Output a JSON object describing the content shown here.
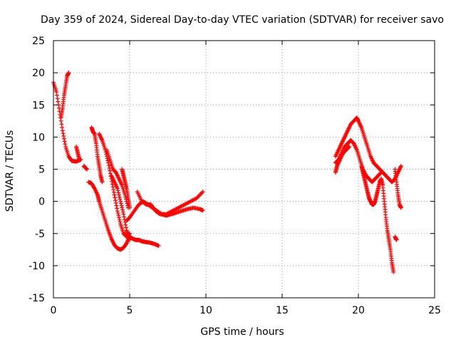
{
  "chart_data": {
    "type": "scatter",
    "title": "Day 359 of 2024, Sidereal Day-to-day VTEC variation (SDTVAR) for receiver savo",
    "xlabel": "GPS time / hours",
    "ylabel": "SDTVAR / TECUs",
    "xlim": [
      0,
      25
    ],
    "ylim": [
      -15,
      25
    ],
    "xticks": [
      0,
      5,
      10,
      15,
      20,
      25
    ],
    "yticks": [
      -15,
      -10,
      -5,
      0,
      5,
      10,
      15,
      20,
      25
    ],
    "xtick_labels": [
      "0",
      "5",
      "10",
      "15",
      "20",
      "25"
    ],
    "ytick_labels": [
      "-15",
      "-10",
      "-5",
      "0",
      "5",
      "10",
      "15",
      "20",
      "25"
    ],
    "grid": true,
    "marker": "plus",
    "color": "#ff0000",
    "series": [
      {
        "name": "trace-1",
        "x": [
          0.0,
          0.2,
          0.4,
          0.6,
          0.8,
          1.0,
          1.2,
          1.5,
          1.8
        ],
        "y": [
          18.5,
          17.0,
          14.0,
          11.0,
          8.5,
          7.0,
          6.3,
          6.2,
          6.5
        ]
      },
      {
        "name": "trace-2",
        "x": [
          0.5,
          0.6,
          0.7,
          0.8,
          0.9,
          1.0
        ],
        "y": [
          13.0,
          14.5,
          16.5,
          18.0,
          19.5,
          20.0
        ]
      },
      {
        "name": "trace-3",
        "x": [
          1.5,
          1.6,
          1.7
        ],
        "y": [
          8.5,
          7.5,
          6.5
        ]
      },
      {
        "name": "trace-4",
        "x": [
          2.0,
          2.1,
          2.2
        ],
        "y": [
          5.5,
          5.2,
          5.0
        ]
      },
      {
        "name": "trace-5",
        "x": [
          2.3,
          2.5,
          2.7,
          2.9,
          3.0,
          3.2,
          3.4,
          3.6,
          3.8,
          4.0,
          4.2,
          4.4,
          4.6,
          4.8,
          5.0
        ],
        "y": [
          3.0,
          2.8,
          2.0,
          1.0,
          0.0,
          -1.5,
          -3.0,
          -4.5,
          -5.8,
          -6.8,
          -7.3,
          -7.5,
          -7.2,
          -6.5,
          -5.5
        ]
      },
      {
        "name": "trace-6",
        "x": [
          2.5,
          2.6,
          2.7,
          2.8,
          2.9,
          3.0,
          3.1,
          3.2
        ],
        "y": [
          11.5,
          10.8,
          10.5,
          9.0,
          7.0,
          5.5,
          4.0,
          3.0
        ]
      },
      {
        "name": "trace-7",
        "x": [
          3.0,
          3.2,
          3.4,
          3.6,
          3.8,
          4.0,
          4.2,
          4.4,
          4.6,
          4.8,
          5.0
        ],
        "y": [
          10.5,
          9.5,
          8.0,
          6.0,
          3.5,
          1.0,
          -1.5,
          -3.5,
          -5.0,
          -5.5,
          -5.0
        ]
      },
      {
        "name": "trace-8",
        "x": [
          3.5,
          3.7,
          3.9,
          4.1,
          4.3,
          4.5,
          4.7,
          4.9
        ],
        "y": [
          8.0,
          6.5,
          5.0,
          4.5,
          3.5,
          2.5,
          1.0,
          -1.0
        ]
      },
      {
        "name": "trace-9",
        "x": [
          3.8,
          4.0,
          4.2,
          4.4,
          4.6,
          4.8,
          4.9,
          5.0
        ],
        "y": [
          4.0,
          3.0,
          2.0,
          0.0,
          -2.0,
          -4.5,
          -5.5,
          -6.0
        ]
      },
      {
        "name": "trace-10",
        "x": [
          4.5,
          4.6,
          4.7,
          4.8,
          4.9,
          5.0
        ],
        "y": [
          5.0,
          4.0,
          3.0,
          2.0,
          0.5,
          -1.0
        ]
      },
      {
        "name": "trace-11",
        "x": [
          5.0,
          5.2,
          5.4,
          5.6,
          5.8,
          6.0,
          6.3,
          6.6,
          6.9
        ],
        "y": [
          -5.5,
          -5.8,
          -6.0,
          -6.0,
          -6.2,
          -6.3,
          -6.4,
          -6.6,
          -6.9
        ]
      },
      {
        "name": "trace-12",
        "x": [
          4.8,
          5.0,
          5.3,
          5.6,
          5.9,
          6.2,
          6.5,
          6.8,
          7.1,
          7.4,
          7.7,
          8.0,
          8.4,
          8.8,
          9.2,
          9.6,
          9.8
        ],
        "y": [
          -3.0,
          -2.5,
          -1.5,
          -0.5,
          0.0,
          -0.5,
          -1.0,
          -1.5,
          -2.0,
          -2.2,
          -2.0,
          -1.8,
          -1.5,
          -1.2,
          -1.0,
          -1.2,
          -1.4
        ]
      },
      {
        "name": "trace-13",
        "x": [
          5.5,
          5.8,
          6.1,
          6.4,
          6.7,
          7.0,
          7.4,
          7.8,
          8.2,
          8.6,
          9.0,
          9.4,
          9.8
        ],
        "y": [
          1.5,
          0.0,
          -0.5,
          -0.5,
          -1.5,
          -2.0,
          -2.0,
          -1.5,
          -1.0,
          -0.5,
          0.0,
          0.5,
          1.5
        ]
      },
      {
        "name": "trace-14",
        "x": [
          18.5,
          18.7,
          18.9,
          19.1,
          19.3,
          19.5,
          19.7,
          19.9,
          20.0,
          20.2,
          20.4,
          20.6,
          20.8,
          21.0,
          21.2,
          21.4,
          21.6,
          21.8,
          22.0,
          22.2,
          22.4,
          22.6,
          22.8
        ],
        "y": [
          7.0,
          8.0,
          9.0,
          10.0,
          11.0,
          12.0,
          12.5,
          13.0,
          12.5,
          11.5,
          10.0,
          8.5,
          7.0,
          6.0,
          5.5,
          5.0,
          4.5,
          4.0,
          3.5,
          3.0,
          3.5,
          4.5,
          5.5
        ]
      },
      {
        "name": "trace-15",
        "x": [
          18.5,
          18.7,
          18.9,
          19.1,
          19.3,
          19.5,
          19.7,
          19.9,
          20.1,
          20.3,
          20.5,
          20.7,
          20.9,
          21.1,
          21.3,
          21.5
        ],
        "y": [
          6.0,
          6.5,
          7.5,
          8.5,
          9.0,
          9.5,
          9.0,
          8.0,
          6.5,
          5.0,
          4.0,
          3.5,
          3.0,
          3.5,
          4.0,
          4.5
        ]
      },
      {
        "name": "trace-16",
        "x": [
          18.5,
          18.6,
          18.8,
          19.0,
          19.2,
          19.4
        ],
        "y": [
          4.5,
          5.5,
          6.5,
          7.5,
          8.0,
          8.5
        ]
      },
      {
        "name": "trace-17",
        "x": [
          20.2,
          20.3,
          20.4,
          20.5,
          20.6,
          20.7,
          20.8,
          20.9,
          21.0,
          21.1,
          21.2,
          21.3,
          21.4,
          21.5,
          21.6,
          21.7,
          21.8,
          21.9,
          22.0,
          22.1,
          22.2,
          22.3
        ],
        "y": [
          5.5,
          4.5,
          3.5,
          2.5,
          1.5,
          0.5,
          0.0,
          -0.5,
          -0.5,
          0.0,
          1.0,
          2.0,
          3.0,
          3.5,
          2.5,
          0.0,
          -2.5,
          -4.5,
          -6.0,
          -7.5,
          -9.5,
          -11.0
        ]
      },
      {
        "name": "trace-18",
        "x": [
          22.4,
          22.5,
          22.6,
          22.7,
          22.8
        ],
        "y": [
          5.0,
          3.0,
          1.0,
          -0.5,
          -1.0
        ]
      },
      {
        "name": "trace-19",
        "x": [
          22.4,
          22.5
        ],
        "y": [
          -5.5,
          -6.0
        ]
      }
    ]
  }
}
